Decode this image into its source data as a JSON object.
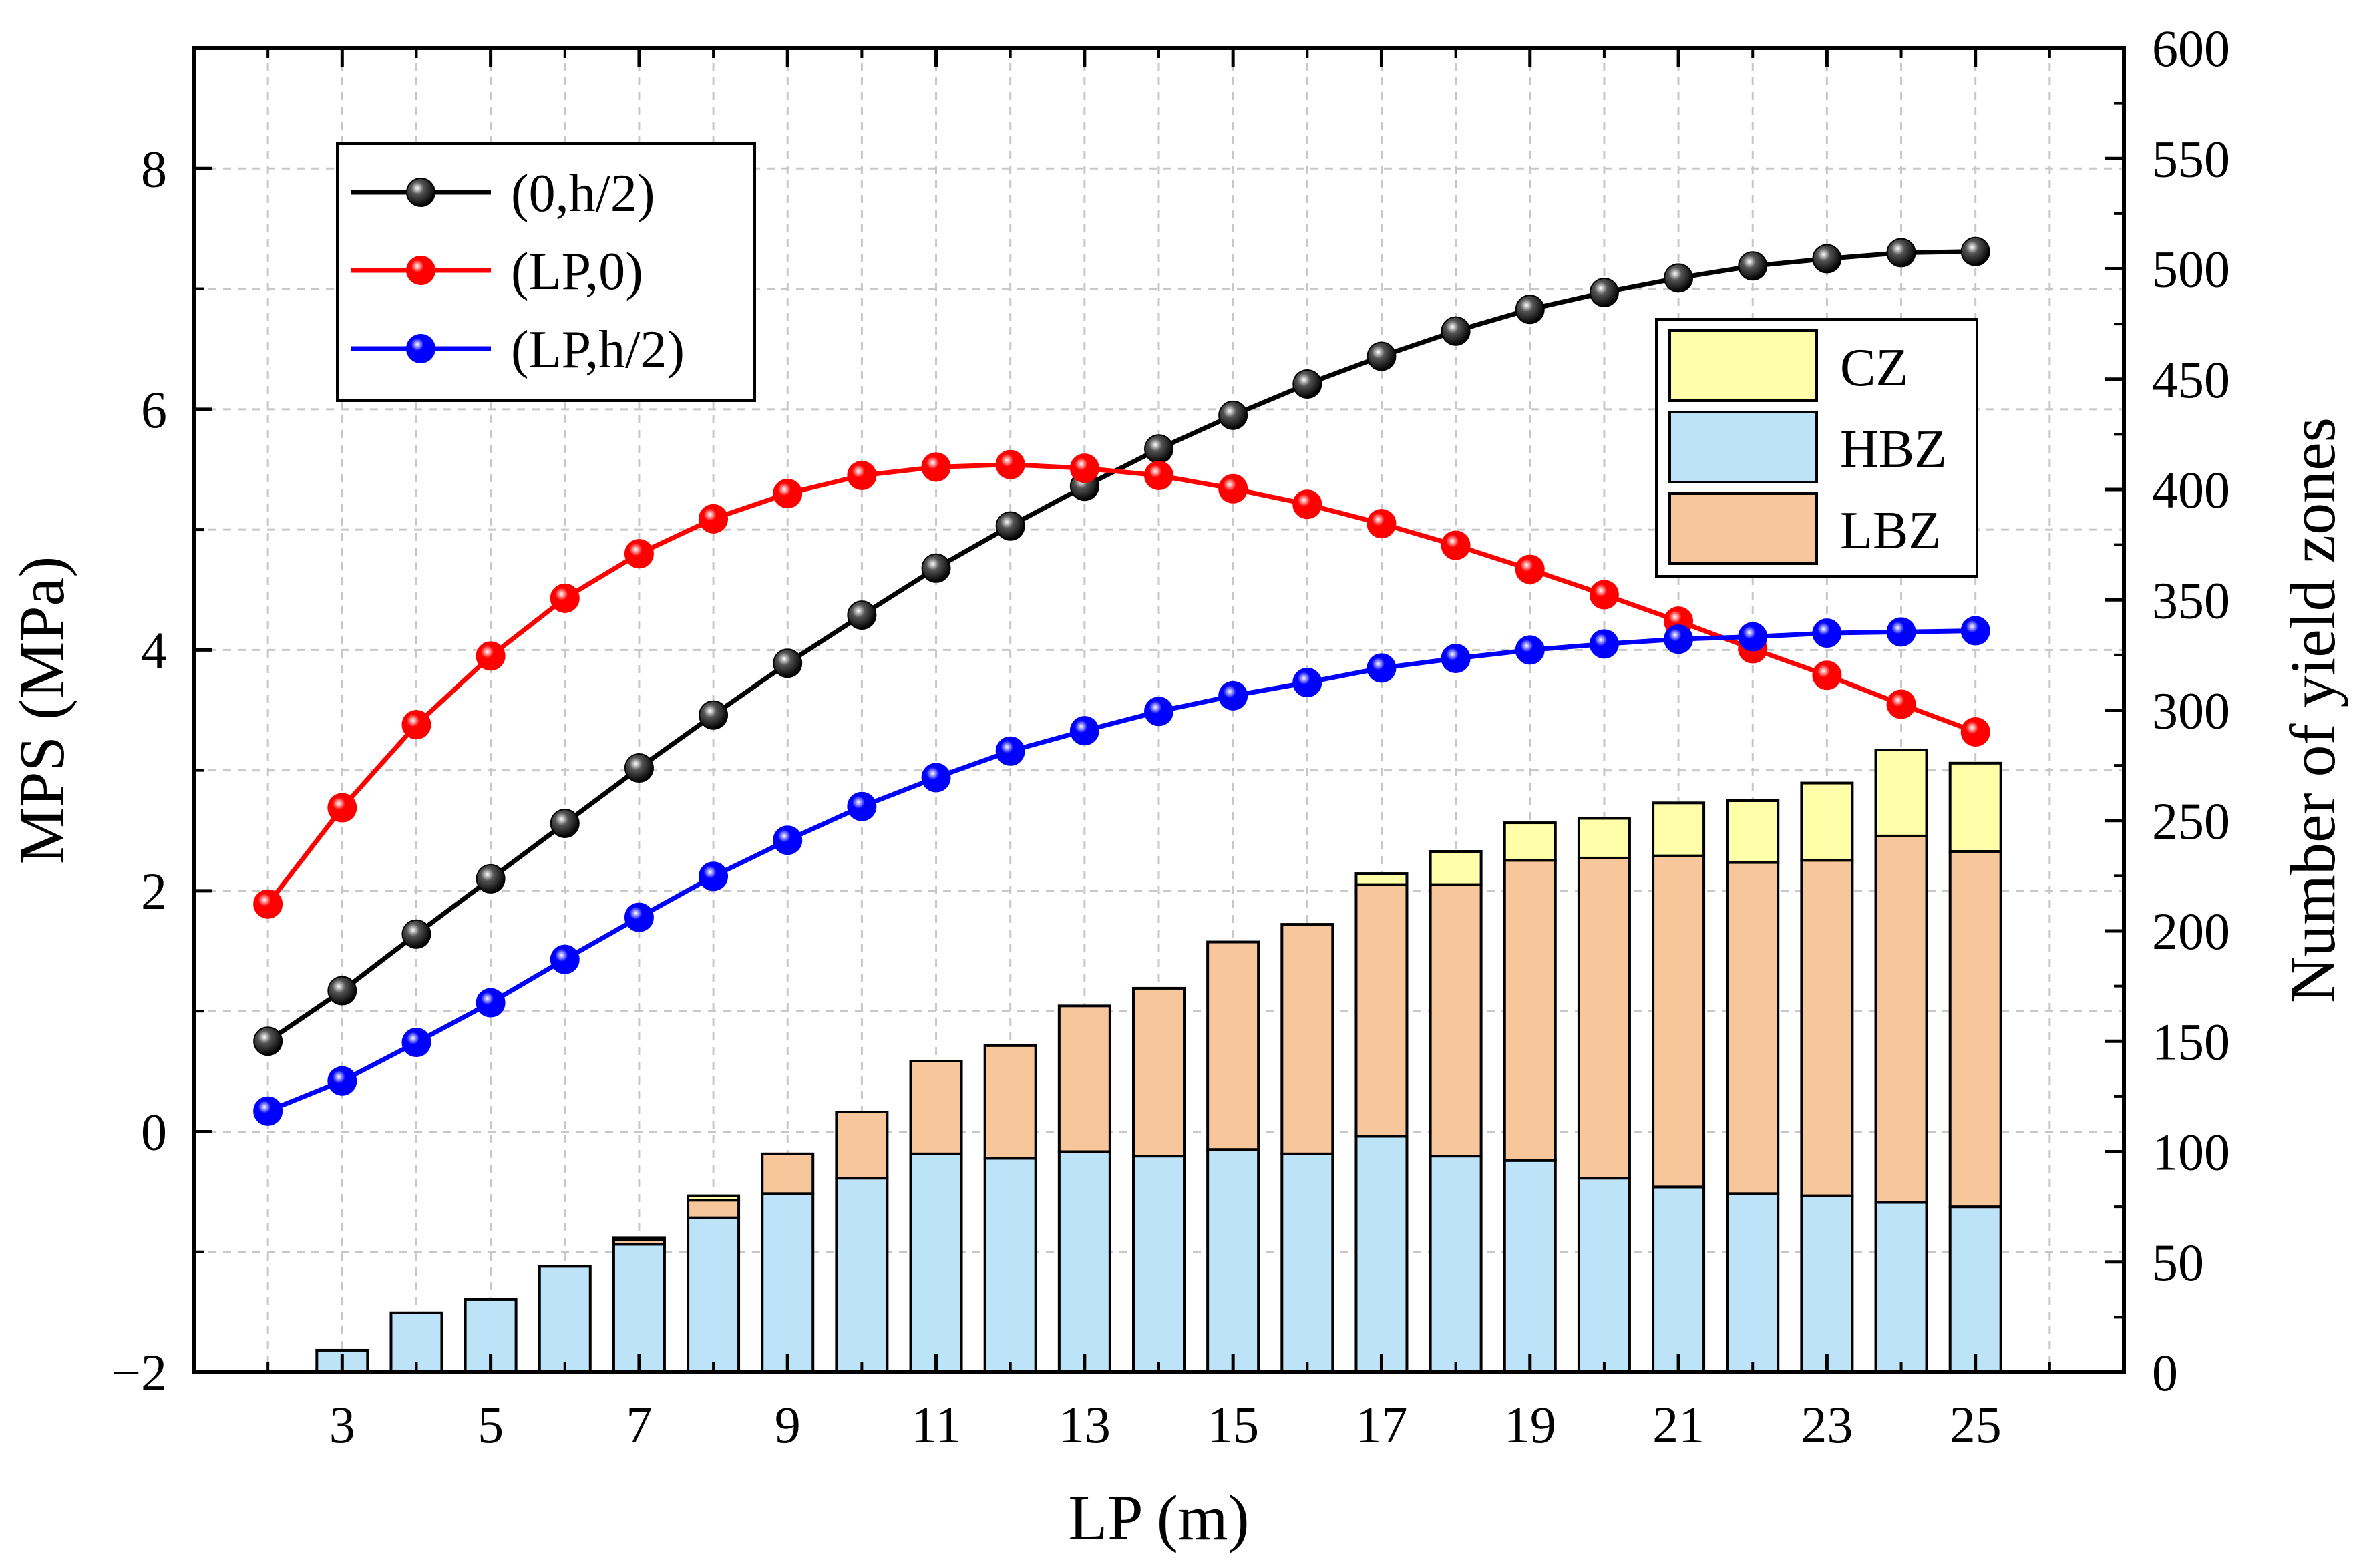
{
  "chart_data": {
    "type": "bar+line (dual axis)",
    "x": {
      "label": "LP (m)",
      "ticks": [
        3,
        5,
        7,
        9,
        11,
        13,
        15,
        17,
        19,
        21,
        23,
        25
      ],
      "range": [
        1,
        27
      ]
    },
    "y_left": {
      "label": "MPS (MPa)",
      "ticks": [
        -2,
        0,
        2,
        4,
        6,
        8
      ],
      "tick_labels": [
        "−2",
        "0",
        "2",
        "4",
        "6",
        "8"
      ],
      "range": [
        -2,
        9
      ]
    },
    "y_right": {
      "label": "Number of yield zones",
      "ticks": [
        0,
        50,
        100,
        150,
        200,
        250,
        300,
        350,
        400,
        450,
        500,
        550,
        600
      ],
      "range": [
        0,
        600
      ]
    },
    "grid": true,
    "line_series": [
      {
        "name": "(0,h/2)",
        "color": "#000000",
        "x": [
          2,
          3,
          4,
          5,
          6,
          7,
          8,
          9,
          10,
          11,
          12,
          13,
          14,
          15,
          16,
          17,
          18,
          19,
          20,
          21,
          22,
          23,
          24,
          25
        ],
        "values": [
          0.75,
          1.17,
          1.64,
          2.1,
          2.56,
          3.02,
          3.46,
          3.89,
          4.29,
          4.68,
          5.03,
          5.36,
          5.67,
          5.95,
          6.21,
          6.44,
          6.65,
          6.83,
          6.97,
          7.09,
          7.19,
          7.25,
          7.3,
          7.31
        ]
      },
      {
        "name": "(LP,0)",
        "color": "#ff0000",
        "x": [
          2,
          3,
          4,
          5,
          6,
          7,
          8,
          9,
          10,
          11,
          12,
          13,
          14,
          15,
          16,
          17,
          18,
          19,
          20,
          21,
          22,
          23,
          24,
          25
        ],
        "values": [
          1.89,
          2.69,
          3.38,
          3.95,
          4.43,
          4.8,
          5.09,
          5.3,
          5.45,
          5.52,
          5.54,
          5.51,
          5.45,
          5.34,
          5.21,
          5.05,
          4.87,
          4.67,
          4.46,
          4.24,
          4.01,
          3.79,
          3.55,
          3.32
        ]
      },
      {
        "name": "(LP,h/2)",
        "color": "#0000ff",
        "x": [
          2,
          3,
          4,
          5,
          6,
          7,
          8,
          9,
          10,
          11,
          12,
          13,
          14,
          15,
          16,
          17,
          18,
          19,
          20,
          21,
          22,
          23,
          24,
          25
        ],
        "values": [
          0.17,
          0.42,
          0.74,
          1.07,
          1.43,
          1.78,
          2.12,
          2.42,
          2.7,
          2.94,
          3.16,
          3.33,
          3.49,
          3.62,
          3.73,
          3.85,
          3.93,
          4.0,
          4.05,
          4.09,
          4.11,
          4.14,
          4.15,
          4.16
        ]
      }
    ],
    "bar_series": [
      {
        "name": "HBZ",
        "color": "#bde3f8",
        "x": [
          3,
          4,
          5,
          6,
          7,
          8,
          9,
          10,
          11,
          12,
          13,
          14,
          15,
          16,
          17,
          18,
          19,
          20,
          21,
          22,
          23,
          24,
          25
        ],
        "values": [
          10,
          27,
          33,
          48,
          58,
          70,
          81,
          88,
          99,
          97,
          100,
          98,
          101,
          99,
          107,
          98,
          96,
          88,
          84,
          81,
          80,
          77,
          75
        ]
      },
      {
        "name": "LBZ",
        "color": "#f7c69b",
        "x": [
          3,
          4,
          5,
          6,
          7,
          8,
          9,
          10,
          11,
          12,
          13,
          14,
          15,
          16,
          17,
          18,
          19,
          20,
          21,
          22,
          23,
          24,
          25
        ],
        "values": [
          0,
          0,
          0,
          0,
          2,
          8,
          18,
          30,
          42,
          51,
          66,
          76,
          94,
          104,
          114,
          123,
          136,
          145,
          150,
          150,
          152,
          166,
          161
        ]
      },
      {
        "name": "CZ",
        "color": "#ffffaa",
        "x": [
          3,
          4,
          5,
          6,
          7,
          8,
          9,
          10,
          11,
          12,
          13,
          14,
          15,
          16,
          17,
          18,
          19,
          20,
          21,
          22,
          23,
          24,
          25
        ],
        "values": [
          0,
          0,
          0,
          0,
          1,
          2,
          0,
          0,
          0,
          0,
          0,
          0,
          0,
          0,
          5,
          15,
          17,
          18,
          24,
          28,
          35,
          39,
          40
        ]
      }
    ],
    "legend_lines": {
      "placement": "top-left",
      "entries": [
        "(0,h/2)",
        "(LP,0)",
        "(LP,h/2)"
      ]
    },
    "legend_bars": {
      "placement": "right",
      "entries": [
        "CZ",
        "HBZ",
        "LBZ"
      ]
    }
  }
}
